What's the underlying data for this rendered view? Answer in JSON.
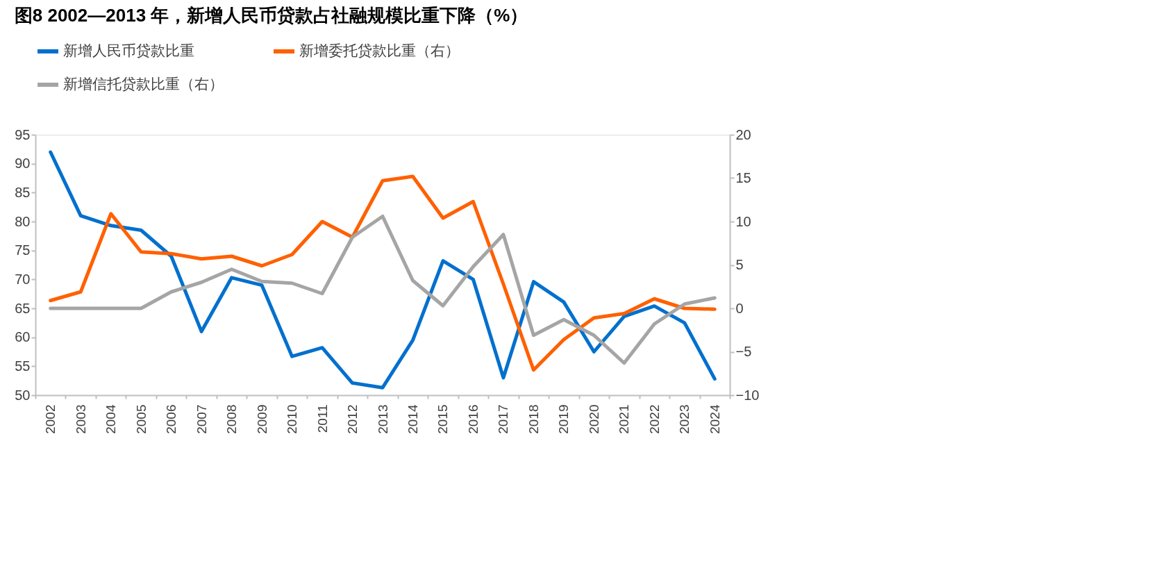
{
  "chart_data": {
    "type": "line",
    "title": "图8  2002—2013 年，新增人民币贷款占社融规模比重下降（%）",
    "categories": [
      "2002",
      "2003",
      "2004",
      "2005",
      "2006",
      "2007",
      "2008",
      "2009",
      "2010",
      "2011",
      "2012",
      "2013",
      "2014",
      "2015",
      "2016",
      "2017",
      "2018",
      "2019",
      "2020",
      "2021",
      "2022",
      "2023",
      "2024"
    ],
    "series": [
      {
        "name": "新增人民币贷款比重",
        "color": "#0070ce",
        "values": [
          92,
          81,
          79.3,
          78.5,
          74,
          61,
          70.3,
          69,
          56.7,
          58.2,
          52.1,
          51.3,
          59.5,
          73.2,
          70,
          53,
          69.6,
          66.1,
          57.5,
          63.6,
          65.4,
          62.5,
          52.8
        ]
      },
      {
        "name": "新增委托贷款比重（右）",
        "color": "#ff6000",
        "axis": "y2",
        "values": [
          0.9,
          1.9,
          10.9,
          6.5,
          6.3,
          5.7,
          6.0,
          4.9,
          6.2,
          10.0,
          8.2,
          14.7,
          15.2,
          10.4,
          12.3,
          2.8,
          -7.1,
          -3.6,
          -1.1,
          -0.6,
          1.1,
          0,
          -0.1
        ]
      },
      {
        "name": "新增信托贷款比重（右）",
        "color": "#a5a5a5",
        "axis": "y2",
        "values": [
          0,
          0,
          0,
          0,
          1.9,
          3.0,
          4.5,
          3.1,
          2.9,
          1.7,
          8.2,
          10.6,
          3.2,
          0.3,
          4.8,
          8.5,
          -3.1,
          -1.3,
          -3.1,
          -6.3,
          -1.8,
          0.5,
          1.2
        ]
      }
    ],
    "ylim": [
      50,
      95
    ],
    "yticks": [
      50,
      55,
      60,
      65,
      70,
      75,
      80,
      85,
      90,
      95
    ],
    "y2lim": [
      -10,
      20
    ],
    "y2ticks": [
      -10,
      -5,
      0,
      5,
      10,
      15,
      20
    ],
    "grid": false,
    "legend": "top",
    "line_style": "solid",
    "marker": "none"
  }
}
